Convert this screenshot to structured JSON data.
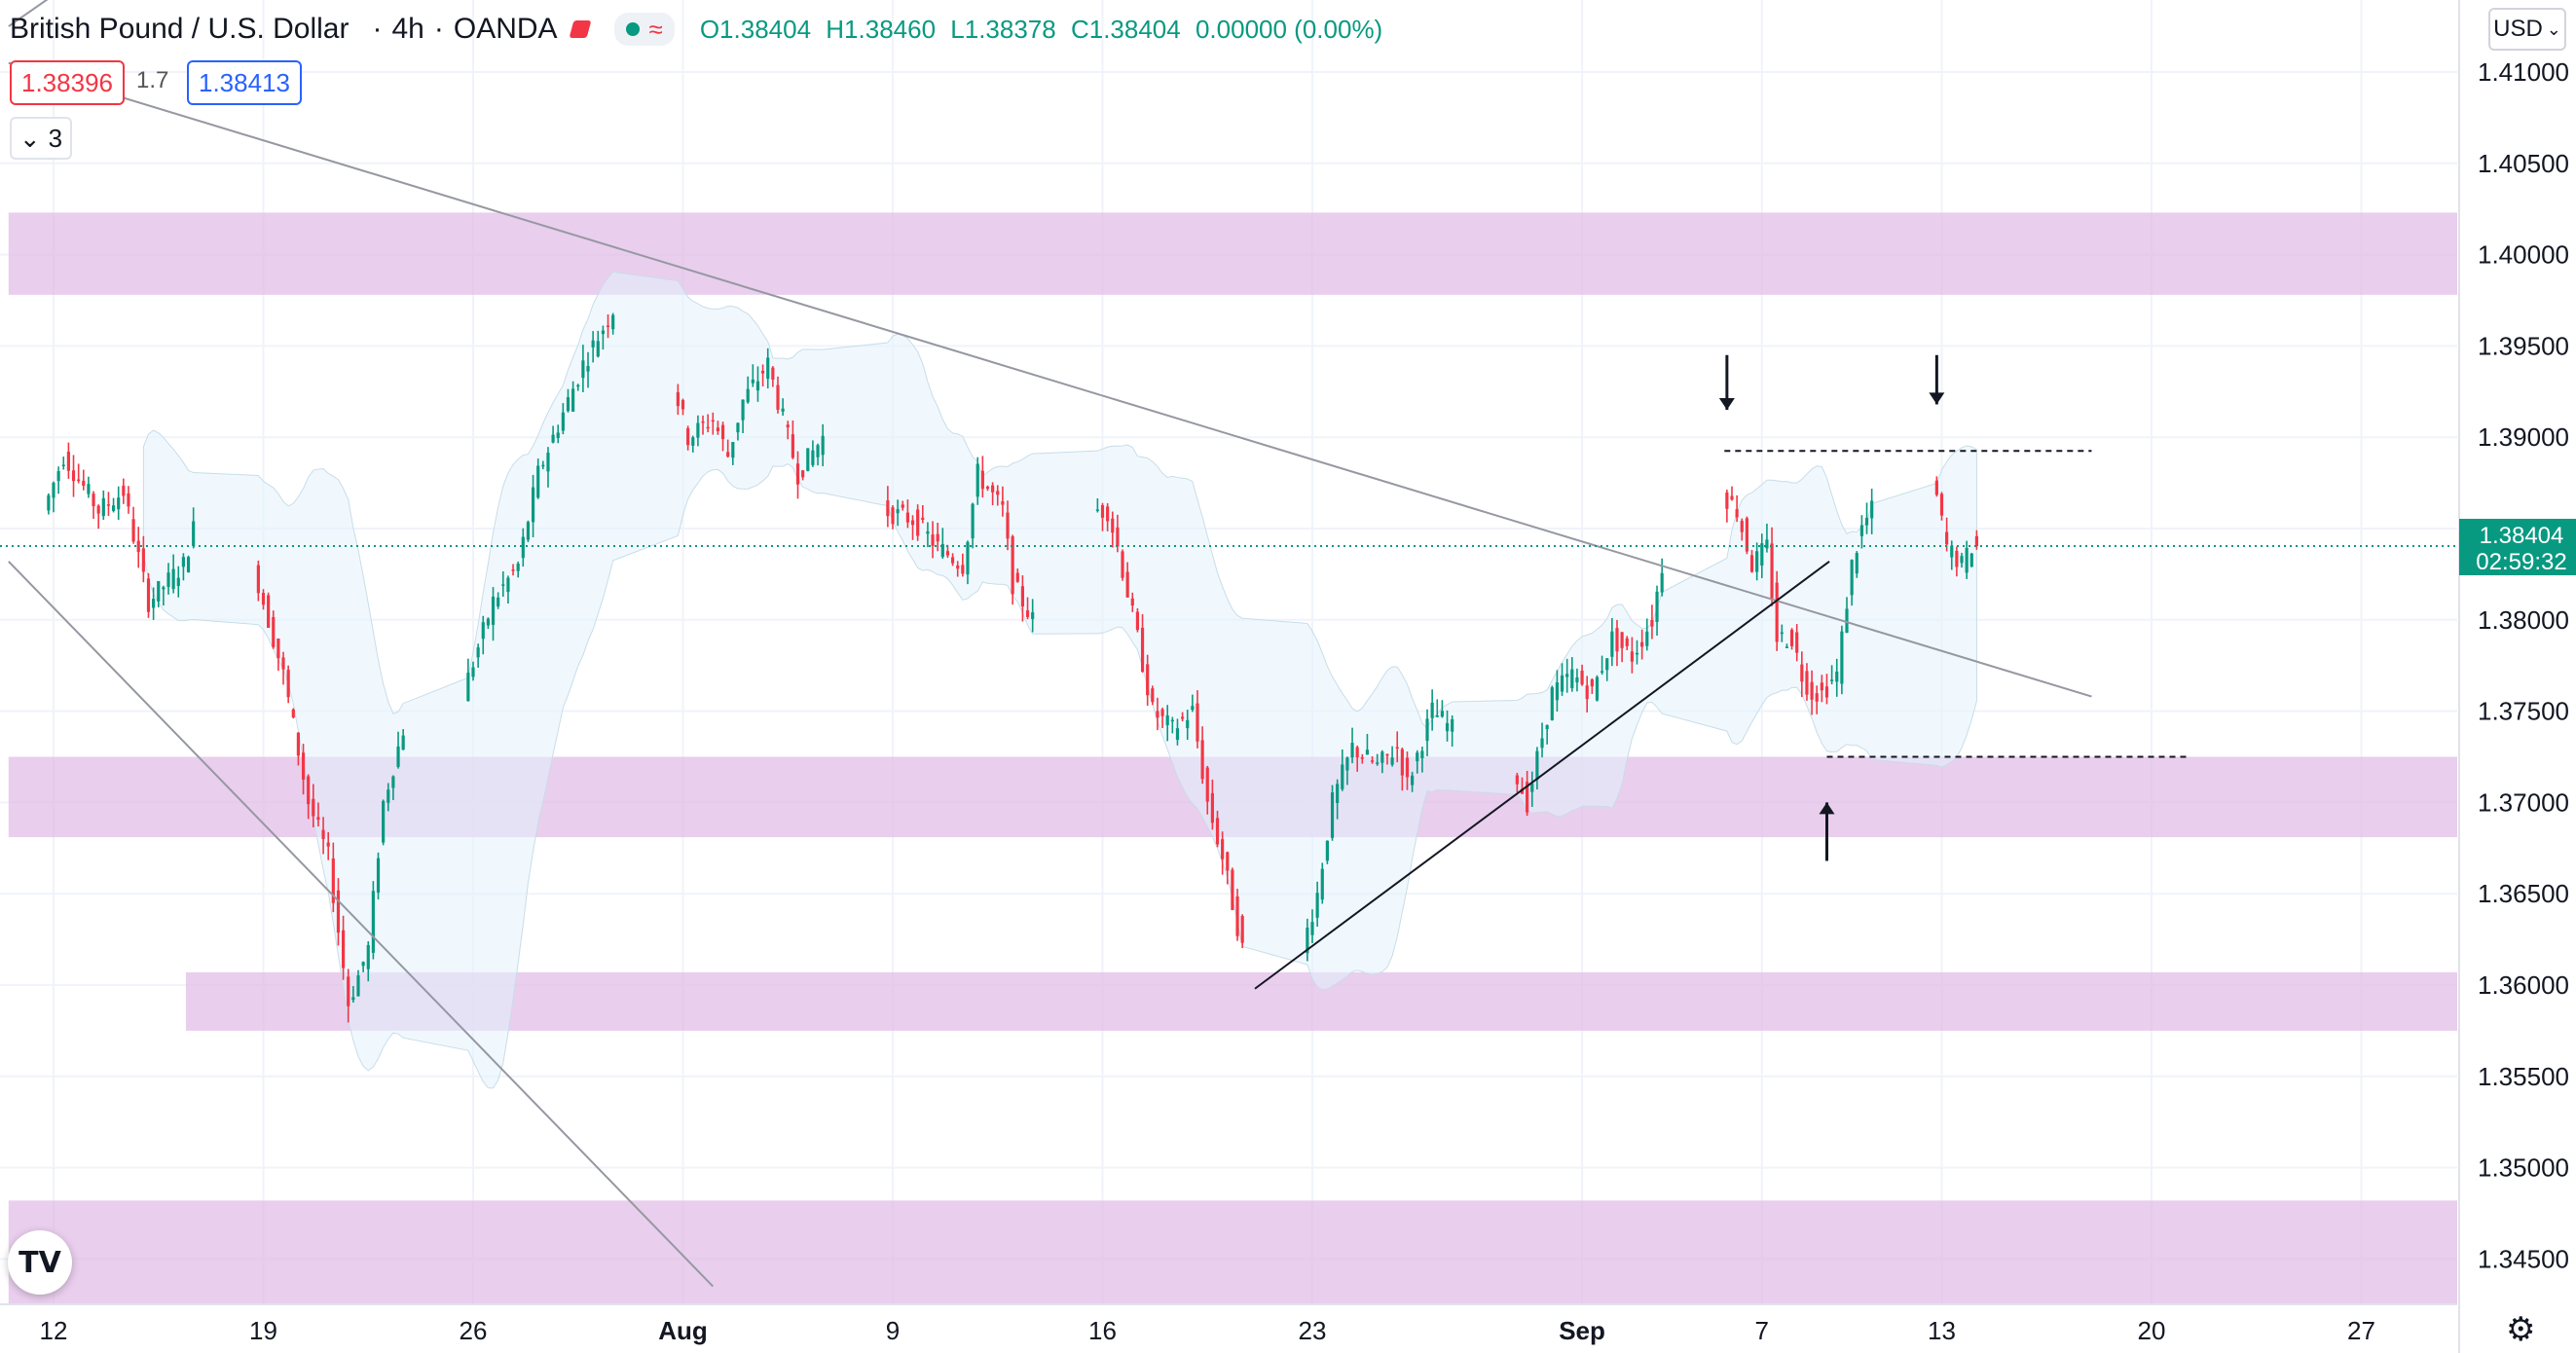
{
  "header": {
    "symbol": "British Pound / U.S. Dollar",
    "interval": "4h",
    "source": "OANDA",
    "wave_icon": "≈",
    "ohlc": {
      "open": "O1.38404",
      "high": "H1.38460",
      "low": "L1.38378",
      "close": "C1.38404",
      "change": "0.00000 (0.00%)"
    }
  },
  "quote": {
    "bid": "1.38396",
    "spread": "1.7",
    "ask": "1.38413"
  },
  "indicators_toggle": {
    "icon": "chevron-down-icon",
    "count": "3"
  },
  "currency_selector": "USD",
  "price_tag": {
    "price": "1.38404",
    "countdown": "02:59:32"
  },
  "colors": {
    "up": "#089981",
    "down": "#f23645",
    "zone": "#e1bee7",
    "band": "#e3f2fd",
    "trend": "#9598a1"
  },
  "chart_data": {
    "type": "candlestick",
    "title": "British Pound / U.S. Dollar",
    "interval": "4h",
    "ylim": [
      1.341,
      1.413
    ],
    "yticks": [
      1.41,
      1.405,
      1.4,
      1.395,
      1.39,
      1.385,
      1.38,
      1.375,
      1.37,
      1.365,
      1.36,
      1.355,
      1.35,
      1.345
    ],
    "ytick_labels": [
      "1.41000",
      "1.40500",
      "1.40000",
      "1.39500",
      "1.39000",
      "1.38500",
      "1.38000",
      "1.37500",
      "1.37000",
      "1.36500",
      "1.36000",
      "1.35500",
      "1.35000",
      "1.34500"
    ],
    "xlim": [
      "2021-07-12T00:00",
      "2021-09-28T00:00"
    ],
    "xticks": [
      {
        "label": "12",
        "date": "2021-07-12"
      },
      {
        "label": "19",
        "date": "2021-07-19"
      },
      {
        "label": "26",
        "date": "2021-07-26"
      },
      {
        "label": "Aug",
        "date": "2021-08-02"
      },
      {
        "label": "9",
        "date": "2021-08-09"
      },
      {
        "label": "16",
        "date": "2021-08-16"
      },
      {
        "label": "23",
        "date": "2021-08-23"
      },
      {
        "label": "Sep",
        "date": "2021-09-01"
      },
      {
        "label": "7",
        "date": "2021-09-07"
      },
      {
        "label": "13",
        "date": "2021-09-13"
      },
      {
        "label": "20",
        "date": "2021-09-20"
      },
      {
        "label": "27",
        "date": "2021-09-27"
      }
    ],
    "last_price": 1.38404,
    "price_anchors": [
      [
        "2021-07-10T20:00",
        1.379
      ],
      [
        "2021-07-11T20:00",
        1.386
      ],
      [
        "2021-07-12T12:00",
        1.389
      ],
      [
        "2021-07-13T16:00",
        1.386
      ],
      [
        "2021-07-14T12:00",
        1.387
      ],
      [
        "2021-07-15T08:00",
        1.381
      ],
      [
        "2021-07-16T12:00",
        1.383
      ],
      [
        "2021-07-17T00:00",
        1.386
      ],
      [
        "2021-07-18T20:00",
        1.383
      ],
      [
        "2021-07-19T20:00",
        1.377
      ],
      [
        "2021-07-20T16:00",
        1.37
      ],
      [
        "2021-07-21T08:00",
        1.367
      ],
      [
        "2021-07-22T00:00",
        1.359
      ],
      [
        "2021-07-22T16:00",
        1.362
      ],
      [
        "2021-07-23T04:00",
        1.37
      ],
      [
        "2021-07-23T20:00",
        1.374
      ],
      [
        "2021-07-25T20:00",
        1.376
      ],
      [
        "2021-07-26T20:00",
        1.381
      ],
      [
        "2021-07-27T16:00",
        1.383
      ],
      [
        "2021-07-28T08:00",
        1.388
      ],
      [
        "2021-07-29T20:00",
        1.394
      ],
      [
        "2021-07-30T12:00",
        1.396
      ],
      [
        "2021-07-30T20:00",
        1.397
      ],
      [
        "2021-08-01T20:00",
        1.393
      ],
      [
        "2021-08-02T08:00",
        1.39
      ],
      [
        "2021-08-03T04:00",
        1.391
      ],
      [
        "2021-08-03T16:00",
        1.389
      ],
      [
        "2021-08-04T04:00",
        1.392
      ],
      [
        "2021-08-05T00:00",
        1.394
      ],
      [
        "2021-08-06T00:00",
        1.388
      ],
      [
        "2021-08-06T20:00",
        1.39
      ],
      [
        "2021-08-08T20:00",
        1.386
      ],
      [
        "2021-08-09T20:00",
        1.3855
      ],
      [
        "2021-08-10T16:00",
        1.384
      ],
      [
        "2021-08-11T12:00",
        1.383
      ],
      [
        "2021-08-12T00:00",
        1.388
      ],
      [
        "2021-08-12T20:00",
        1.386
      ],
      [
        "2021-08-13T04:00",
        1.382
      ],
      [
        "2021-08-13T20:00",
        1.38
      ],
      [
        "2021-08-15T20:00",
        1.386
      ],
      [
        "2021-08-16T08:00",
        1.386
      ],
      [
        "2021-08-16T16:00",
        1.384
      ],
      [
        "2021-08-17T08:00",
        1.379
      ],
      [
        "2021-08-17T20:00",
        1.375
      ],
      [
        "2021-08-18T12:00",
        1.374
      ],
      [
        "2021-08-19T04:00",
        1.375
      ],
      [
        "2021-08-19T16:00",
        1.37
      ],
      [
        "2021-08-20T04:00",
        1.367
      ],
      [
        "2021-08-20T20:00",
        1.362
      ],
      [
        "2021-08-22T20:00",
        1.362
      ],
      [
        "2021-08-23T08:00",
        1.365
      ],
      [
        "2021-08-23T20:00",
        1.37
      ],
      [
        "2021-08-24T12:00",
        1.373
      ],
      [
        "2021-08-25T08:00",
        1.372
      ],
      [
        "2021-08-26T00:00",
        1.373
      ],
      [
        "2021-08-26T08:00",
        1.371
      ],
      [
        "2021-08-27T04:00",
        1.375
      ],
      [
        "2021-08-27T20:00",
        1.374
      ],
      [
        "2021-08-29T20:00",
        1.372
      ],
      [
        "2021-08-30T08:00",
        1.37
      ],
      [
        "2021-08-31T04:00",
        1.376
      ],
      [
        "2021-08-31T20:00",
        1.377
      ],
      [
        "2021-09-01T12:00",
        1.376
      ],
      [
        "2021-09-02T04:00",
        1.379
      ],
      [
        "2021-09-02T20:00",
        1.378
      ],
      [
        "2021-09-03T12:00",
        1.38
      ],
      [
        "2021-09-03T20:00",
        1.383
      ],
      [
        "2021-09-05T20:00",
        1.387
      ],
      [
        "2021-09-06T08:00",
        1.386
      ],
      [
        "2021-09-06T20:00",
        1.383
      ],
      [
        "2021-09-07T08:00",
        1.384
      ],
      [
        "2021-09-07T16:00",
        1.379
      ],
      [
        "2021-09-08T04:00",
        1.379
      ],
      [
        "2021-09-08T12:00",
        1.377
      ],
      [
        "2021-09-08T20:00",
        1.376
      ],
      [
        "2021-09-09T04:00",
        1.376
      ],
      [
        "2021-09-09T16:00",
        1.377
      ],
      [
        "2021-09-10T04:00",
        1.383
      ],
      [
        "2021-09-10T12:00",
        1.385
      ],
      [
        "2021-09-10T20:00",
        1.386
      ],
      [
        "2021-09-12T20:00",
        1.388
      ],
      [
        "2021-09-13T08:00",
        1.384
      ],
      [
        "2021-09-13T20:00",
        1.383
      ],
      [
        "2021-09-14T04:00",
        1.384
      ]
    ],
    "zones": [
      {
        "low": 1.3978,
        "high": 1.4023,
        "from": "2021-07-10T12:00"
      },
      {
        "low": 1.3681,
        "high": 1.3725,
        "from": "2021-07-10T12:00"
      },
      {
        "low": 1.3575,
        "high": 1.3607,
        "from": "2021-07-16T10:00"
      },
      {
        "low": 1.3425,
        "high": 1.3482,
        "from": "2021-07-10T12:00"
      }
    ],
    "trendlines": [
      {
        "from": [
          "2021-07-10T12:00",
          1.3832
        ],
        "to": [
          "2021-08-03T00:00",
          1.3435
        ],
        "color": "trend"
      },
      {
        "from": [
          "2021-07-10T12:00",
          1.4125
        ],
        "to": [
          "2021-07-12T06:00",
          1.4145
        ],
        "color": "trend"
      },
      {
        "from": [
          "2021-07-10T12:00",
          1.4105
        ],
        "to": [
          "2021-09-18T00:00",
          1.3758
        ],
        "color": "trend"
      },
      {
        "from": [
          "2021-08-21T02:00",
          1.3598
        ],
        "to": [
          "2021-09-09T06:00",
          1.3832
        ],
        "color": "black"
      }
    ],
    "levels": [
      {
        "price": 1.38925,
        "from": "2021-09-05T18:00",
        "to": "2021-09-18T00:00"
      },
      {
        "price": 1.3725,
        "from": "2021-09-09T04:00",
        "to": "2021-09-21T04:00"
      }
    ],
    "arrows": [
      {
        "date": "2021-09-05T20:00",
        "direction": "down",
        "from": 1.3945,
        "to": 1.3915
      },
      {
        "date": "2021-09-12T20:00",
        "direction": "down",
        "from": 1.3945,
        "to": 1.3918
      },
      {
        "date": "2021-09-09T04:00",
        "direction": "up",
        "from": 1.3668,
        "to": 1.37
      }
    ]
  }
}
